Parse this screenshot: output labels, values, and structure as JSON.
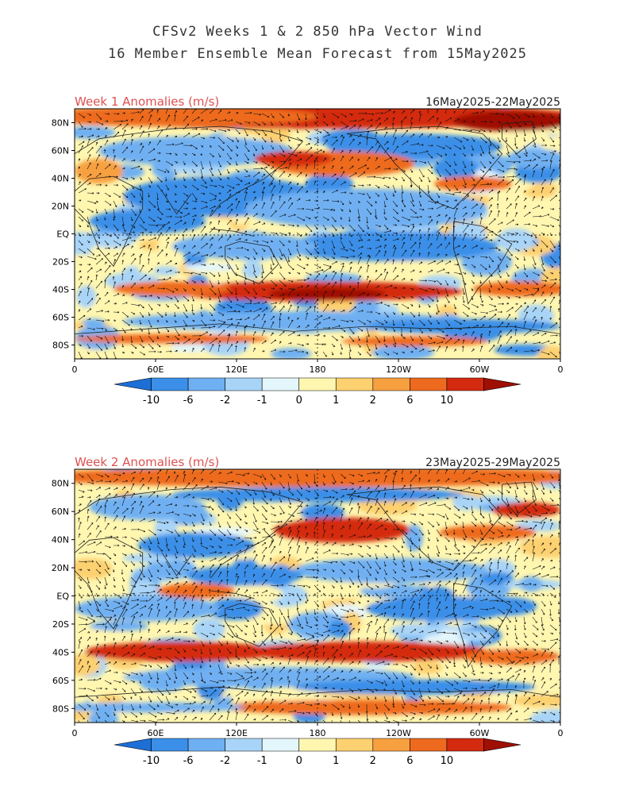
{
  "title_line1": "CFSv2 Weeks 1 & 2 850 hPa Vector Wind",
  "title_line2": "16 Member Ensemble Mean Forecast from 15May2025",
  "lat_labels": [
    "80N",
    "60N",
    "40N",
    "20N",
    "EQ",
    "20S",
    "40S",
    "60S",
    "80S"
  ],
  "lon_labels": [
    "0",
    "60E",
    "120E",
    "180",
    "120W",
    "60W",
    "0"
  ],
  "colorbar_labels": [
    "-10",
    "-6",
    "-2",
    "-1",
    "0",
    "1",
    "2",
    "6",
    "10"
  ],
  "colorbar_colors": [
    "#1d6fd6",
    "#3b8fe8",
    "#6fb0f2",
    "#a8d4f7",
    "#e3f6fb",
    "#fff6b0",
    "#fdd070",
    "#f7a040",
    "#ee6a1f",
    "#d42a10",
    "#9f0f04"
  ],
  "panels": [
    {
      "label": "Week 1 Anomalies (m/s)",
      "dates": "16May2025-22May2025"
    },
    {
      "label": "Week 2 Anomalies (m/s)",
      "dates": "23May2025-29May2025"
    }
  ]
}
